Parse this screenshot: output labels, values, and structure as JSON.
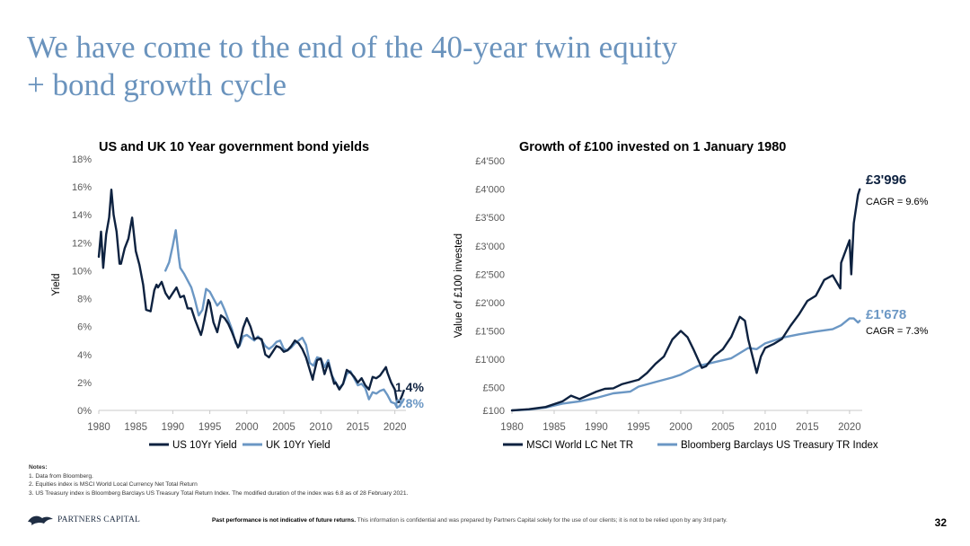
{
  "slide": {
    "title_line1": "We have come to the end of the 40-year twin equity",
    "title_line2": "+ bond growth cycle",
    "page_number": "32"
  },
  "notes": {
    "header": "Notes:",
    "items": [
      "1. Data from Bloomberg.",
      "2. Equities index is MSCI World Local Currency Net Total Return",
      "3. US Treasury index is Bloomberg Barclays US Treasury Total Return Index. The modified duration of the index was 6.8 as of 28 February 2021."
    ]
  },
  "footer": {
    "logo_text": "PARTNERS CAPITAL",
    "disclaimer_bold": "Past performance is not indicative of future returns.",
    "disclaimer_rest": " This information is confidential and was prepared by Partners Capital solely for the use of our clients; it is not to be relied upon by any 3rd party."
  },
  "colors": {
    "title": "#6a93bd",
    "series_dark": "#0e2240",
    "series_light": "#6b97c4"
  },
  "chart_data": [
    {
      "type": "line",
      "title": "US and UK 10 Year government bond yields",
      "xlabel": "",
      "ylabel": "Yield",
      "xlim": [
        1980,
        2021.5
      ],
      "ylim": [
        0,
        18
      ],
      "xticks": [
        1980,
        1985,
        1990,
        1995,
        2000,
        2005,
        2010,
        2015,
        2020
      ],
      "xtick_labels": [
        "1980",
        "1985",
        "1990",
        "1995",
        "2000",
        "2005",
        "2010",
        "2015",
        "2020"
      ],
      "yticks": [
        0,
        2,
        4,
        6,
        8,
        10,
        12,
        14,
        16,
        18
      ],
      "ytick_labels": [
        "0%",
        "2%",
        "4%",
        "6%",
        "8%",
        "10%",
        "12%",
        "14%",
        "16%",
        "18%"
      ],
      "legend": "bottom",
      "end_labels": [
        "1.4%",
        "0.8%"
      ],
      "series": [
        {
          "name": "US 10Yr Yield",
          "color": "#0e2240",
          "x": [
            1980,
            1980.3,
            1980.6,
            1981,
            1981.4,
            1981.7,
            1982,
            1982.4,
            1982.8,
            1983,
            1983.5,
            1984,
            1984.5,
            1985,
            1985.5,
            1986,
            1986.4,
            1987,
            1987.5,
            1987.8,
            1988,
            1988.5,
            1989,
            1989.5,
            1990,
            1990.5,
            1991,
            1991.5,
            1992,
            1992.5,
            1993,
            1993.8,
            1994,
            1994.8,
            1995,
            1995.5,
            1996,
            1996.5,
            1997,
            1997.5,
            1998,
            1998.8,
            1999,
            1999.5,
            2000,
            2000.5,
            2001,
            2001.5,
            2002,
            2002.5,
            2003,
            2003.5,
            2004,
            2004.5,
            2005,
            2005.5,
            2006,
            2006.5,
            2007,
            2007.5,
            2008,
            2008.9,
            2009,
            2009.5,
            2010,
            2010.5,
            2011,
            2011.8,
            2012,
            2012.5,
            2013,
            2013.5,
            2014,
            2014.5,
            2015,
            2015.5,
            2016,
            2016.5,
            2017,
            2017.5,
            2018,
            2018.8,
            2019,
            2019.5,
            2020,
            2020.3,
            2020.6,
            2021,
            2021.2
          ],
          "y": [
            11.0,
            12.8,
            10.2,
            12.6,
            13.8,
            15.8,
            14.0,
            12.8,
            10.5,
            10.5,
            11.6,
            12.3,
            13.8,
            11.4,
            10.4,
            9.0,
            7.2,
            7.1,
            8.6,
            9.0,
            8.8,
            9.2,
            8.4,
            8.0,
            8.4,
            8.8,
            8.1,
            8.2,
            7.3,
            7.3,
            6.5,
            5.4,
            5.8,
            7.9,
            7.7,
            6.3,
            5.6,
            6.8,
            6.6,
            6.2,
            5.6,
            4.5,
            4.7,
            5.9,
            6.6,
            6.0,
            5.1,
            5.2,
            5.1,
            4.0,
            3.8,
            4.2,
            4.6,
            4.5,
            4.2,
            4.3,
            4.6,
            5.0,
            4.8,
            4.4,
            3.8,
            2.2,
            2.5,
            3.6,
            3.7,
            2.6,
            3.4,
            1.9,
            2.0,
            1.5,
            1.9,
            2.9,
            2.7,
            2.4,
            2.0,
            2.3,
            1.8,
            1.5,
            2.4,
            2.3,
            2.5,
            3.1,
            2.7,
            2.0,
            1.5,
            0.6,
            0.6,
            1.1,
            1.4
          ]
        },
        {
          "name": "UK 10Yr Yield",
          "color": "#6b97c4",
          "x": [
            1989,
            1989.5,
            1990,
            1990.4,
            1990.8,
            1991,
            1991.5,
            1992,
            1992.5,
            1993,
            1993.5,
            1994,
            1994.5,
            1995,
            1995.5,
            1996,
            1996.5,
            1997,
            1997.5,
            1998,
            1998.5,
            1999,
            1999.5,
            2000,
            2000.5,
            2001,
            2001.5,
            2002,
            2002.5,
            2003,
            2003.5,
            2004,
            2004.5,
            2005,
            2005.5,
            2006,
            2006.5,
            2007,
            2007.5,
            2008,
            2008.5,
            2009,
            2009.5,
            2010,
            2010.5,
            2011,
            2011.5,
            2012,
            2012.5,
            2013,
            2013.5,
            2014,
            2014.5,
            2015,
            2015.5,
            2016,
            2016.5,
            2017,
            2017.5,
            2018,
            2018.5,
            2019,
            2019.5,
            2020,
            2020.3,
            2020.6,
            2021,
            2021.2
          ],
          "y": [
            10.0,
            10.6,
            11.8,
            12.9,
            11.0,
            10.2,
            9.8,
            9.3,
            8.8,
            7.9,
            6.8,
            7.2,
            8.7,
            8.5,
            8.0,
            7.5,
            7.8,
            7.2,
            6.5,
            5.8,
            4.8,
            4.6,
            5.3,
            5.4,
            5.2,
            5.0,
            5.3,
            5.0,
            4.6,
            4.4,
            4.6,
            4.9,
            5.0,
            4.4,
            4.3,
            4.5,
            4.8,
            5.0,
            5.2,
            4.7,
            3.4,
            3.2,
            3.8,
            3.7,
            3.1,
            3.6,
            2.5,
            2.0,
            1.6,
            1.9,
            2.6,
            2.8,
            2.3,
            1.8,
            1.9,
            1.6,
            0.8,
            1.3,
            1.2,
            1.4,
            1.5,
            1.1,
            0.6,
            0.5,
            0.2,
            0.3,
            0.6,
            0.8
          ]
        }
      ]
    },
    {
      "type": "line",
      "title": "Growth of £100 invested on 1 January 1980",
      "xlabel": "",
      "ylabel": "Value of £100 invested",
      "xlim": [
        1980,
        2021.5
      ],
      "ylim": [
        100,
        4500
      ],
      "xticks": [
        1980,
        1985,
        1990,
        1995,
        2000,
        2005,
        2010,
        2015,
        2020
      ],
      "xtick_labels": [
        "1980",
        "1985",
        "1990",
        "1995",
        "2000",
        "2005",
        "2010",
        "2015",
        "2020"
      ],
      "yticks": [
        100,
        500,
        1000,
        1500,
        2000,
        2500,
        3000,
        3500,
        4000,
        4500
      ],
      "ytick_labels": [
        "£100",
        "£500",
        "£1'000",
        "£1'500",
        "£2'000",
        "£2'500",
        "£3'000",
        "£3'500",
        "£4'000",
        "£4'500"
      ],
      "legend": "bottom",
      "end_labels": [
        "£3'996",
        "£1'678"
      ],
      "annotations": [
        "CAGR = 9.6%",
        "CAGR = 7.3%"
      ],
      "series": [
        {
          "name": "MSCI World LC Net TR",
          "color": "#0e2240",
          "x": [
            1980,
            1982,
            1984,
            1986,
            1987,
            1988,
            1990,
            1991,
            1992,
            1993,
            1995,
            1996,
            1997,
            1998,
            1999,
            2000,
            2000.8,
            2001.5,
            2002.5,
            2003,
            2004,
            2005,
            2006,
            2007,
            2007.6,
            2008,
            2009,
            2009.5,
            2010,
            2011,
            2012,
            2013,
            2014,
            2015,
            2016,
            2017,
            2018,
            2018.9,
            2019,
            2020,
            2020.2,
            2020.5,
            2021,
            2021.2
          ],
          "y": [
            100,
            120,
            160,
            260,
            360,
            300,
            430,
            480,
            490,
            560,
            640,
            760,
            920,
            1050,
            1350,
            1500,
            1390,
            1180,
            850,
            880,
            1060,
            1180,
            1400,
            1750,
            1680,
            1350,
            760,
            1050,
            1200,
            1270,
            1360,
            1590,
            1790,
            2030,
            2120,
            2400,
            2480,
            2250,
            2700,
            3100,
            2500,
            3400,
            3900,
            3996
          ]
        },
        {
          "name": "Bloomberg Barclays US Treasury TR Index",
          "color": "#6b97c4",
          "x": [
            1980,
            1982,
            1984,
            1986,
            1988,
            1990,
            1992,
            1994,
            1995,
            1997,
            1999,
            2000,
            2002,
            2004,
            2006,
            2008,
            2009,
            2010,
            2012,
            2014,
            2016,
            2018,
            2019,
            2020,
            2020.5,
            2021,
            2021.2
          ],
          "y": [
            100,
            115,
            150,
            220,
            260,
            320,
            400,
            430,
            520,
            600,
            680,
            730,
            880,
            950,
            1020,
            1200,
            1180,
            1280,
            1380,
            1440,
            1490,
            1530,
            1600,
            1720,
            1720,
            1650,
            1678
          ]
        }
      ]
    }
  ]
}
